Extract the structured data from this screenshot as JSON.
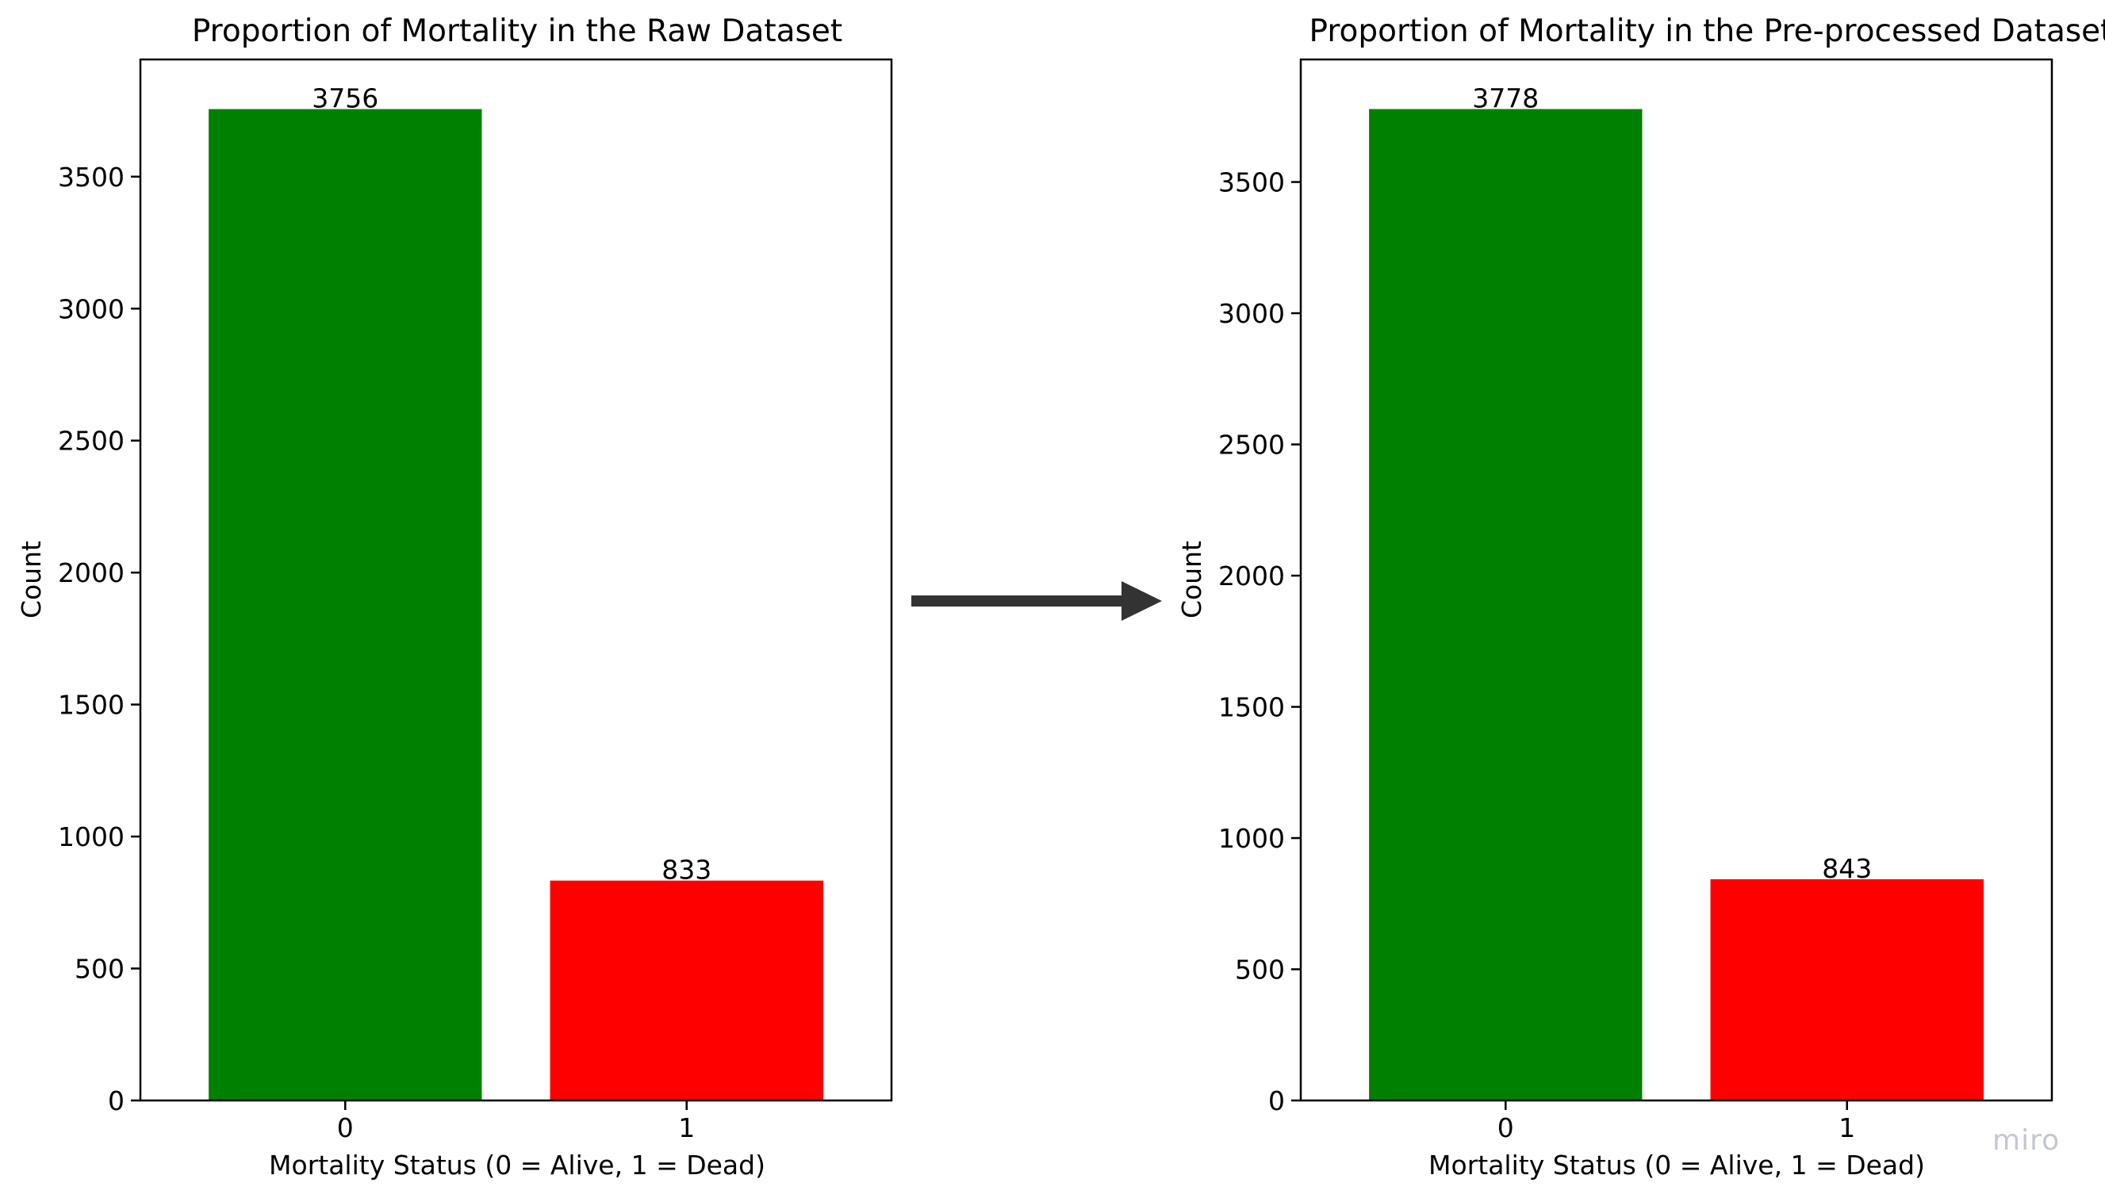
{
  "watermark": "miro",
  "colors": {
    "alive": "#008000",
    "dead": "#ff0000",
    "arrow": "#333333"
  },
  "chart_data": [
    {
      "type": "bar",
      "title": "Proportion of Mortality in the Raw Dataset",
      "xlabel": "Mortality Status (0 = Alive, 1 = Dead)",
      "ylabel": "Count",
      "categories": [
        "0",
        "1"
      ],
      "values": [
        3756,
        833
      ],
      "data_labels": [
        "3756",
        "833"
      ],
      "bar_colors": [
        "#008000",
        "#ff0000"
      ],
      "ylim": [
        0,
        3944
      ],
      "yticks": [
        0,
        500,
        1000,
        1500,
        2000,
        2500,
        3000,
        3500
      ],
      "grid": false
    },
    {
      "type": "bar",
      "title": "Proportion of Mortality in the Pre-processed Dataset",
      "xlabel": "Mortality Status (0 = Alive, 1 = Dead)",
      "ylabel": "Count",
      "categories": [
        "0",
        "1"
      ],
      "values": [
        3778,
        843
      ],
      "data_labels": [
        "3778",
        "843"
      ],
      "bar_colors": [
        "#008000",
        "#ff0000"
      ],
      "ylim": [
        0,
        3967
      ],
      "yticks": [
        0,
        500,
        1000,
        1500,
        2000,
        2500,
        3000,
        3500
      ],
      "grid": false
    }
  ]
}
